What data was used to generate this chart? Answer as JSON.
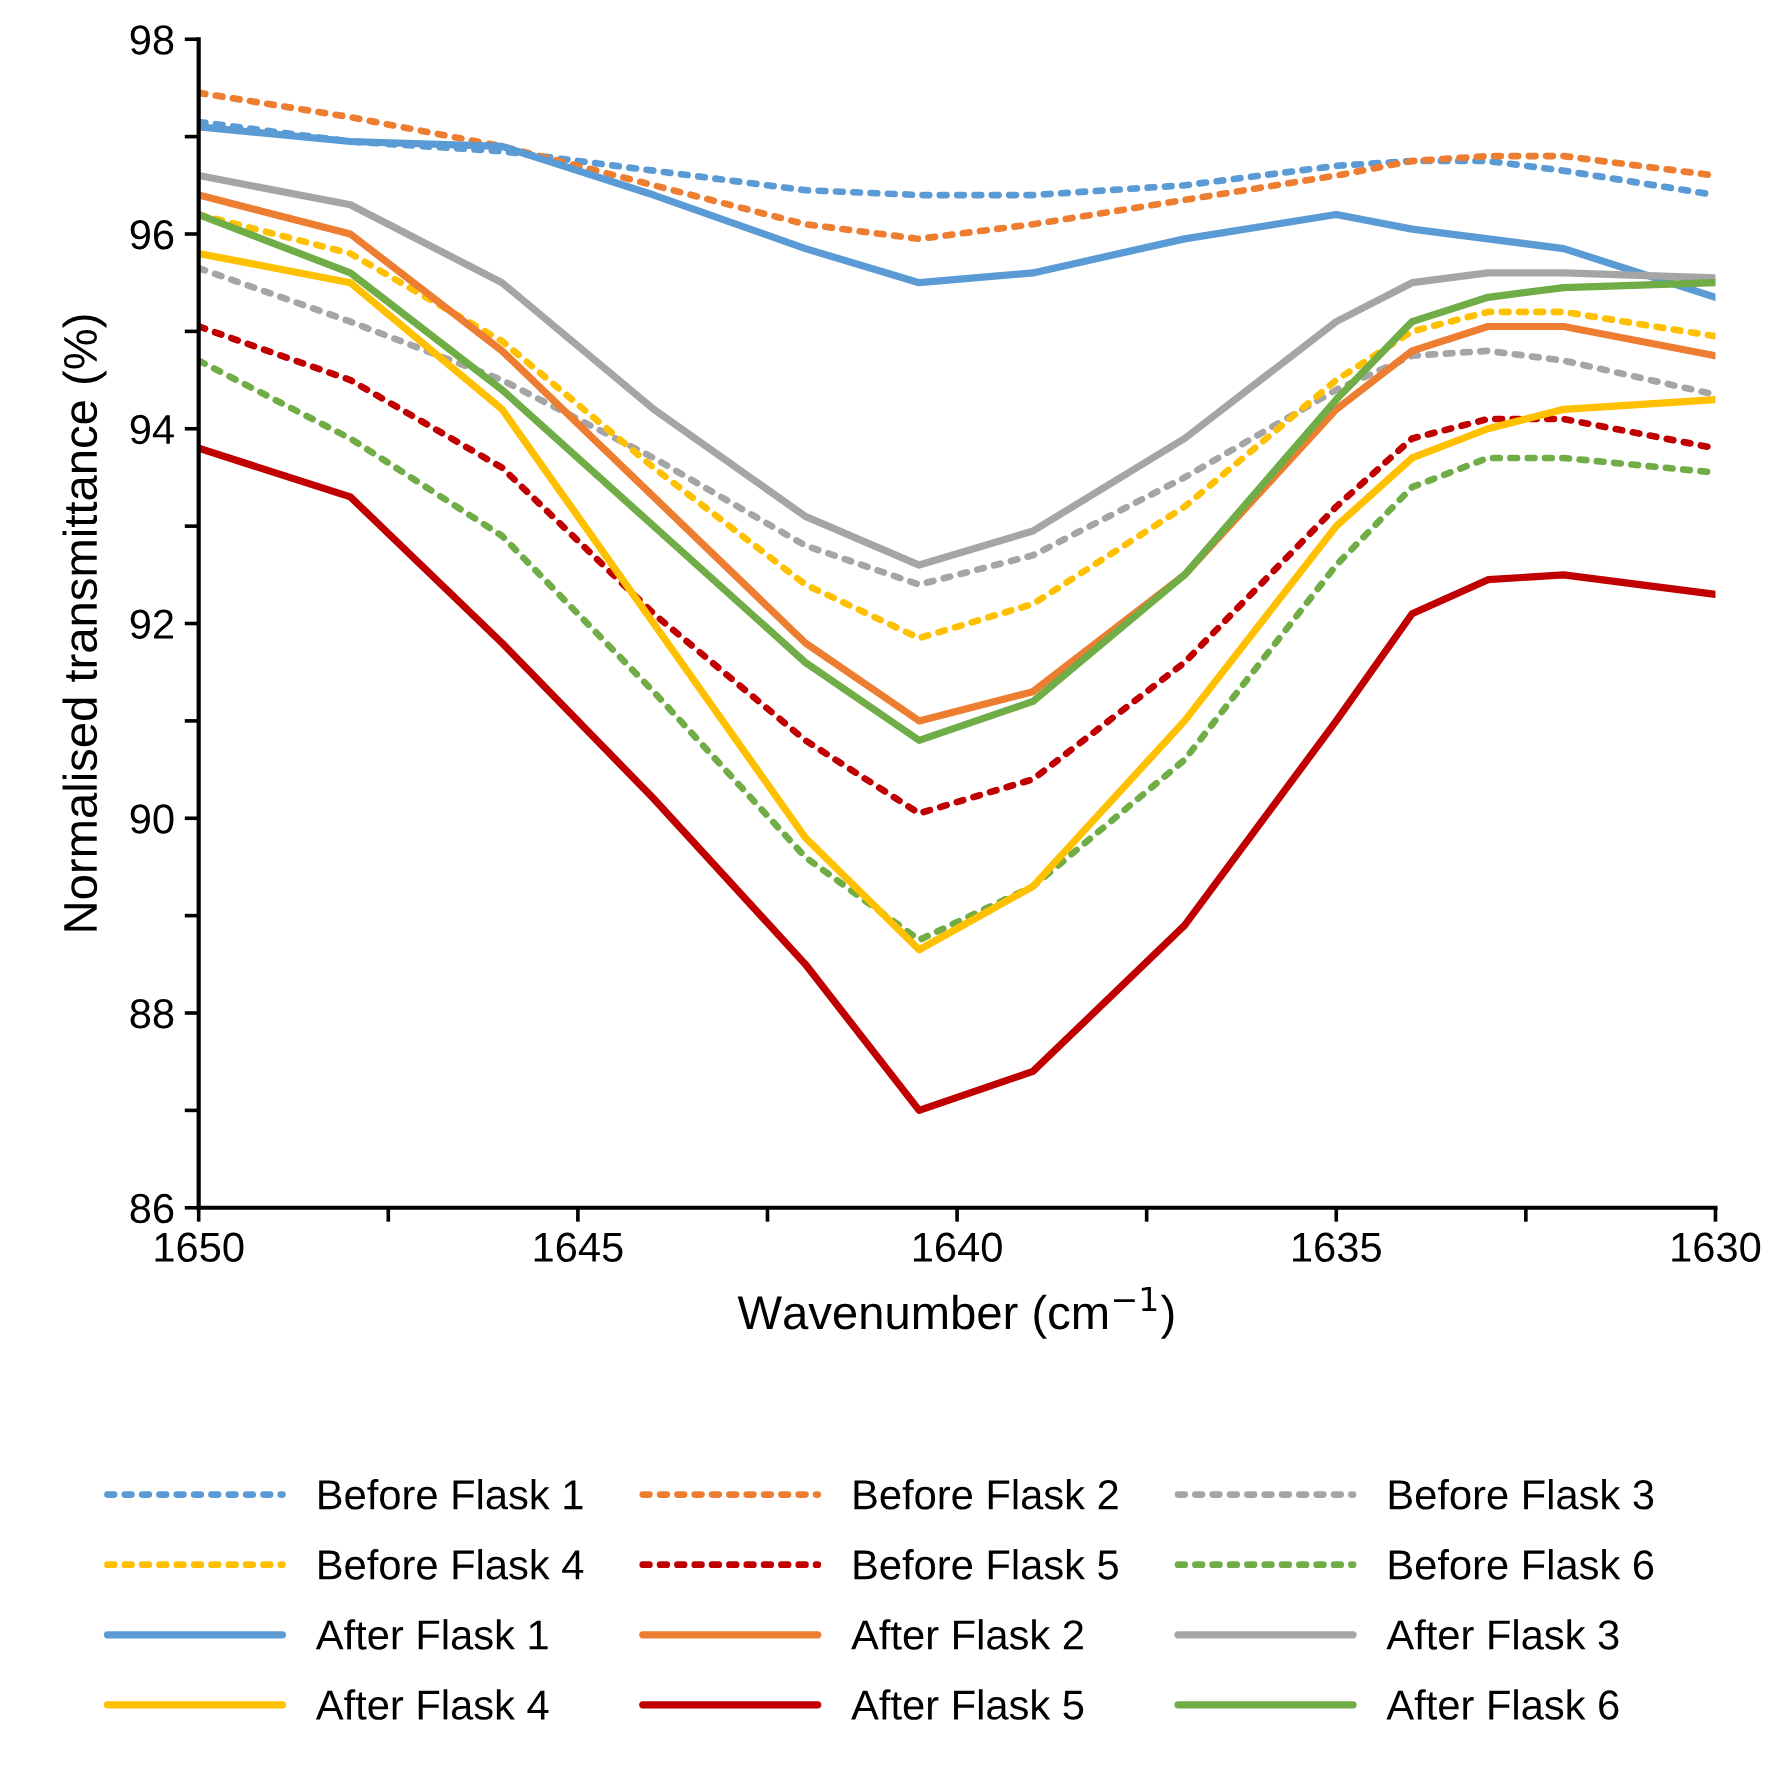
{
  "chart_data": {
    "type": "line",
    "xlabel": "Wavenumber (cm$^{−1}$)",
    "ylabel": "Normalised transmittance (%)",
    "x": [
      1650,
      1648,
      1646,
      1644,
      1642,
      1640.5,
      1639,
      1637,
      1635,
      1634,
      1633,
      1632,
      1630
    ],
    "xlim": [
      1650,
      1630
    ],
    "xticks": [
      1650,
      {
        "value": 1647.5,
        "label": null
      },
      1645,
      {
        "value": 1642.5,
        "label": null
      },
      1640,
      {
        "value": 1637.5,
        "label": null
      },
      1635,
      {
        "value": 1632.5,
        "label": null
      },
      1630
    ],
    "ylim": [
      86,
      98
    ],
    "yticks": [
      86,
      {
        "value": 87,
        "label": null
      },
      88,
      {
        "value": 89,
        "label": null
      },
      90,
      {
        "value": 91,
        "label": null
      },
      92,
      {
        "value": 93,
        "label": null
      },
      94,
      {
        "value": 95,
        "label": null
      },
      96,
      {
        "value": 97,
        "label": null
      },
      98
    ],
    "grid": false,
    "legend": "bottom",
    "marker": "none",
    "series": [
      {
        "name": "Before Flask 1",
        "color": "#5b9bd5",
        "line_style": "dotted",
        "values": [
          97.15,
          96.95,
          96.85,
          96.65,
          96.45,
          96.4,
          96.4,
          96.5,
          96.7,
          96.75,
          96.75,
          96.65,
          96.4
        ]
      },
      {
        "name": "Before Flask 2",
        "color": "#ed7d31",
        "line_style": "dotted",
        "values": [
          97.45,
          97.2,
          96.9,
          96.5,
          96.1,
          95.95,
          96.1,
          96.35,
          96.6,
          96.75,
          96.8,
          96.8,
          96.6
        ]
      },
      {
        "name": "Before Flask 3",
        "color": "#a5a5a5",
        "line_style": "dotted",
        "values": [
          95.65,
          95.1,
          94.5,
          93.7,
          92.8,
          92.4,
          92.7,
          93.5,
          94.4,
          94.75,
          94.8,
          94.7,
          94.35
        ]
      },
      {
        "name": "Before Flask 4",
        "color": "#ffc000",
        "line_style": "dotted",
        "values": [
          96.2,
          95.8,
          94.9,
          93.6,
          92.4,
          91.85,
          92.2,
          93.2,
          94.5,
          95.0,
          95.2,
          95.2,
          94.95
        ]
      },
      {
        "name": "Before Flask 5",
        "color": "#c00000",
        "line_style": "dotted",
        "values": [
          95.05,
          94.5,
          93.6,
          92.1,
          90.8,
          90.05,
          90.4,
          91.6,
          93.2,
          93.9,
          94.1,
          94.1,
          93.8
        ]
      },
      {
        "name": "Before Flask 6",
        "color": "#70ad47",
        "line_style": "dotted",
        "values": [
          94.7,
          93.9,
          92.9,
          91.3,
          89.6,
          88.75,
          89.3,
          90.6,
          92.6,
          93.4,
          93.7,
          93.7,
          93.55
        ]
      },
      {
        "name": "After Flask 1",
        "color": "#5b9bd5",
        "line_style": "solid",
        "values": [
          97.1,
          96.95,
          96.9,
          96.4,
          95.85,
          95.5,
          95.6,
          95.95,
          96.2,
          96.05,
          95.95,
          95.85,
          95.35
        ]
      },
      {
        "name": "After Flask 2",
        "color": "#ed7d31",
        "line_style": "solid",
        "values": [
          96.4,
          96.0,
          94.8,
          93.3,
          91.8,
          91.0,
          91.3,
          92.5,
          94.2,
          94.8,
          95.05,
          95.05,
          94.75
        ]
      },
      {
        "name": "After Flask 3",
        "color": "#a5a5a5",
        "line_style": "solid",
        "values": [
          96.6,
          96.3,
          95.5,
          94.2,
          93.1,
          92.6,
          92.95,
          93.9,
          95.1,
          95.5,
          95.6,
          95.6,
          95.55
        ]
      },
      {
        "name": "After Flask 4",
        "color": "#ffc000",
        "line_style": "solid",
        "values": [
          95.8,
          95.5,
          94.2,
          92.0,
          89.8,
          88.65,
          89.3,
          91.0,
          93.0,
          93.7,
          94.0,
          94.2,
          94.3
        ]
      },
      {
        "name": "After Flask 5",
        "color": "#c00000",
        "line_style": "solid",
        "values": [
          93.8,
          93.3,
          91.8,
          90.2,
          88.5,
          87.0,
          87.4,
          88.9,
          91.0,
          92.1,
          92.45,
          92.5,
          92.3
        ]
      },
      {
        "name": "After Flask 6",
        "color": "#70ad47",
        "line_style": "solid",
        "values": [
          96.2,
          95.6,
          94.4,
          93.0,
          91.6,
          90.8,
          91.2,
          92.5,
          94.3,
          95.1,
          95.35,
          95.45,
          95.5
        ]
      }
    ]
  }
}
